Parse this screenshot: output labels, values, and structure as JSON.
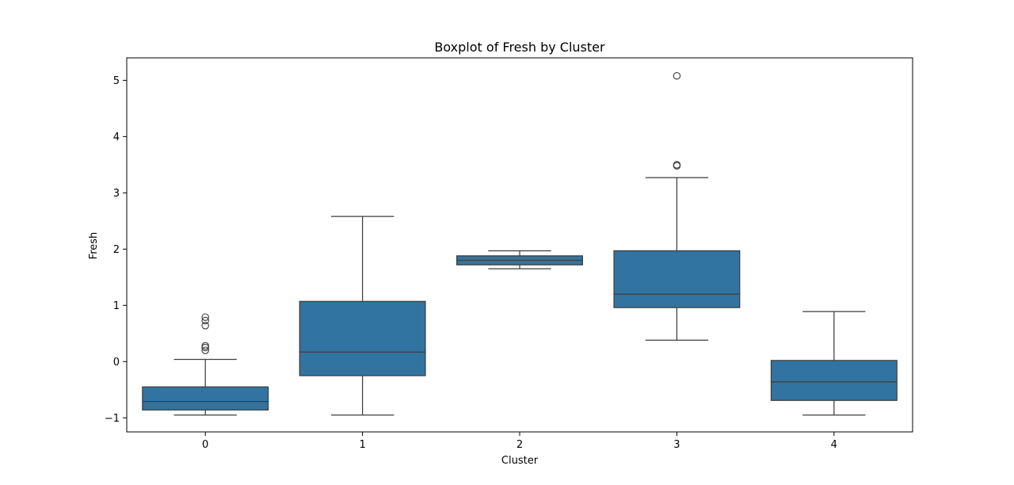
{
  "chart_data": {
    "type": "box",
    "title": "Boxplot of Fresh by Cluster",
    "xlabel": "Cluster",
    "ylabel": "Fresh",
    "categories": [
      "0",
      "1",
      "2",
      "3",
      "4"
    ],
    "yticks": [
      -1,
      0,
      1,
      2,
      3,
      4,
      5
    ],
    "ylim": [
      -1.25,
      5.4
    ],
    "grid": false,
    "box_color": "#3274a1",
    "line_color": "#3d3d3d",
    "boxes": [
      {
        "category": "0",
        "whisker_low": -0.95,
        "q1": -0.86,
        "median": -0.71,
        "q3": -0.45,
        "whisker_high": 0.04,
        "outliers": [
          0.2,
          0.25,
          0.28,
          0.64,
          0.73,
          0.79
        ]
      },
      {
        "category": "1",
        "whisker_low": -0.95,
        "q1": -0.25,
        "median": 0.17,
        "q3": 1.07,
        "whisker_high": 2.58,
        "outliers": []
      },
      {
        "category": "2",
        "whisker_low": 1.65,
        "q1": 1.72,
        "median": 1.8,
        "q3": 1.88,
        "whisker_high": 1.97,
        "outliers": []
      },
      {
        "category": "3",
        "whisker_low": 0.38,
        "q1": 0.96,
        "median": 1.2,
        "q3": 1.97,
        "whisker_high": 3.27,
        "outliers": [
          3.48,
          3.5,
          5.08
        ]
      },
      {
        "category": "4",
        "whisker_low": -0.95,
        "q1": -0.69,
        "median": -0.36,
        "q3": 0.02,
        "whisker_high": 0.89,
        "outliers": []
      }
    ]
  }
}
